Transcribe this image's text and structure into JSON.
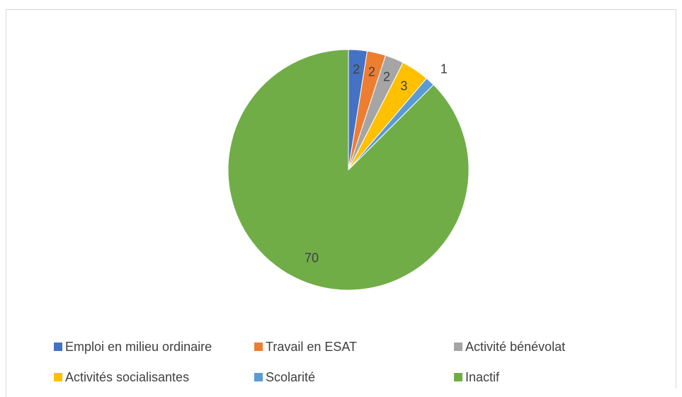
{
  "chart_data": {
    "type": "pie",
    "title": "",
    "categories": [
      "Emploi en milieu ordinaire",
      "Travail en ESAT",
      "Activité bénévolat",
      "Activités socialisantes",
      "Scolarité",
      "Inactif"
    ],
    "values": [
      2,
      2,
      2,
      3,
      1,
      70
    ],
    "colors": [
      "#4472C4",
      "#ED7D31",
      "#A5A5A5",
      "#FFC000",
      "#5B9BD5",
      "#70AD47"
    ],
    "data_labels": [
      "2",
      "2",
      "2",
      "3",
      "1",
      "70"
    ],
    "legend_position": "bottom",
    "start_angle": "top, clockwise"
  }
}
